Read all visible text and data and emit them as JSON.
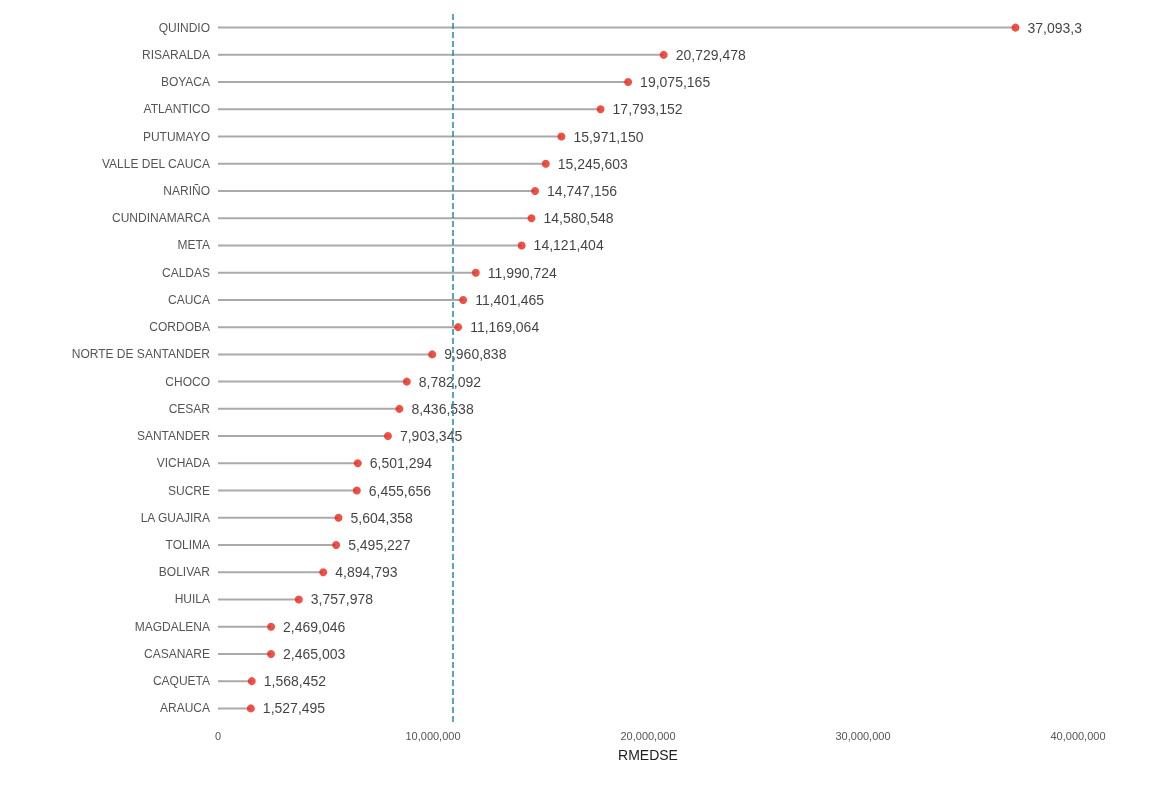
{
  "chart_data": {
    "type": "lollipop",
    "orientation": "horizontal",
    "xlabel": "RMEDSE",
    "categories": [
      "QUINDIO",
      "RISARALDA",
      "BOYACA",
      "ATLANTICO",
      "PUTUMAYO",
      "VALLE DEL CAUCA",
      "NARIÑO",
      "CUNDINAMARCA",
      "META",
      "CALDAS",
      "CAUCA",
      "CORDOBA",
      "NORTE DE SANTANDER",
      "CHOCO",
      "CESAR",
      "SANTANDER",
      "VICHADA",
      "SUCRE",
      "LA GUAJIRA",
      "TOLIMA",
      "BOLIVAR",
      "HUILA",
      "MAGDALENA",
      "CASANARE",
      "CAQUETA",
      "ARAUCA"
    ],
    "values": [
      37093300,
      20729478,
      19075165,
      17793152,
      15971150,
      15245603,
      14747156,
      14580548,
      14121404,
      11990724,
      11401465,
      11169064,
      9960838,
      8782092,
      8436538,
      7903345,
      6501294,
      6455656,
      5604358,
      5495227,
      4894793,
      3757978,
      2469046,
      2465003,
      1568452,
      1527495
    ],
    "value_labels": [
      "37,093,3",
      "20,729,478",
      "19,075,165",
      "17,793,152",
      "15,971,150",
      "15,245,603",
      "14,747,156",
      "14,580,548",
      "14,121,404",
      "11,990,724",
      "11,401,465",
      "11,169,064",
      "9,960,838",
      "8,782,092",
      "8,436,538",
      "7,903,345",
      "6,501,294",
      "6,455,656",
      "5,604,358",
      "5,495,227",
      "4,894,793",
      "3,757,978",
      "2,469,046",
      "2,465,003",
      "1,568,452",
      "1,527,495"
    ],
    "color": "#e8261a",
    "marker": "circle",
    "grid": false,
    "xlim": [
      0,
      40000000
    ],
    "xticks": [
      0,
      {
        "value": 10000000,
        "label": "10,000,000"
      },
      {
        "value": 20000000,
        "label": "20,000,000"
      },
      {
        "value": 30000000,
        "label": "30,000,000"
      },
      {
        "value": 40000000,
        "label": "40,000,000"
      }
    ],
    "ref_lines": [
      {
        "axis": "x",
        "value": 10900000,
        "color": "#1f8aa6",
        "line_style": "dashed"
      }
    ]
  }
}
